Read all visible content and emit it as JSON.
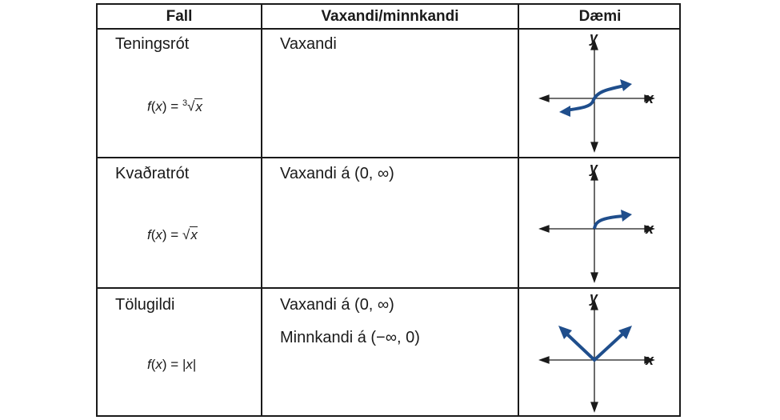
{
  "headers": {
    "function": "Fall",
    "behavior": "Vaxandi/minnkandi",
    "example": "Dæmi"
  },
  "rows": [
    {
      "name": "Teningsrót",
      "formula": {
        "f": "f",
        "x": "x",
        "eq": "=",
        "index": "3",
        "arg": "x"
      },
      "behavior": [
        "Vaxandi"
      ],
      "graph": {
        "x_label": "x",
        "y_label": "y",
        "curve": "cube-root"
      }
    },
    {
      "name": "Kvaðratrót",
      "formula": {
        "f": "f",
        "x": "x",
        "eq": "=",
        "arg": "x"
      },
      "behavior": [
        "Vaxandi á (0, ∞)"
      ],
      "graph": {
        "x_label": "x",
        "y_label": "y",
        "curve": "square-root"
      }
    },
    {
      "name": "Tölugildi",
      "formula": {
        "f": "f",
        "x": "x",
        "eq": "=",
        "arg": "x",
        "bar": "|"
      },
      "behavior": [
        "Vaxandi á (0, ∞)",
        "Minnkandi á (−∞, 0)"
      ],
      "graph": {
        "x_label": "x",
        "y_label": "y",
        "curve": "absolute-value"
      }
    }
  ],
  "colors": {
    "curve": "#1f4e8c",
    "axis": "#1a1a1a",
    "border": "#1a1a1a"
  },
  "icons": {
    "arrow_head": "arrow-head-icon"
  }
}
